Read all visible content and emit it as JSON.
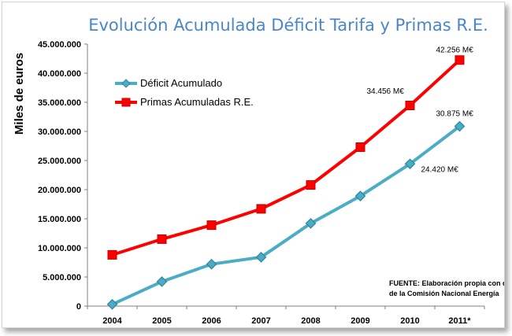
{
  "chart_data": {
    "type": "line",
    "title": "Evolución Acumulada Déficit Tarifa y Primas R.E.",
    "ylabel": "Miles de euros",
    "xlabel": "",
    "categories": [
      "2004",
      "2005",
      "2006",
      "2007",
      "2008",
      "2009",
      "2010",
      "2011*"
    ],
    "ylim": [
      0,
      45000000
    ],
    "yticks": [
      0,
      5000000,
      10000000,
      15000000,
      20000000,
      25000000,
      30000000,
      35000000,
      40000000,
      45000000
    ],
    "ytick_labels": [
      "0",
      "5.000.000",
      "10.000.000",
      "15.000.000",
      "20.000.000",
      "25.000.000",
      "30.000.000",
      "35.000.000",
      "40.000.000",
      "45.000.000"
    ],
    "grid": false,
    "legend_position": "top-left",
    "series": [
      {
        "name": "Déficit Acumulado",
        "color": "#31859c",
        "line_color": "#4bacc6",
        "marker": "diamond",
        "values": [
          300000,
          4200000,
          7200000,
          8400000,
          14200000,
          18900000,
          24420000,
          30875000
        ]
      },
      {
        "name": "Primas Acumuladas R.E.",
        "color": "#ff0000",
        "line_color": "#ff0000",
        "marker": "square",
        "values": [
          8800000,
          11500000,
          13900000,
          16700000,
          20800000,
          27300000,
          34456000,
          42256000
        ]
      }
    ],
    "data_labels": [
      {
        "series": 1,
        "index": 7,
        "text": "42.256 M€"
      },
      {
        "series": 1,
        "index": 6,
        "text": "34.456 M€"
      },
      {
        "series": 0,
        "index": 7,
        "text": "30.875 M€"
      },
      {
        "series": 0,
        "index": 6,
        "text": "24.420 M€"
      }
    ],
    "annotation": [
      "FUENTE: Elaboración propia con datos",
      "de la Comisión Nacional Energía"
    ]
  }
}
